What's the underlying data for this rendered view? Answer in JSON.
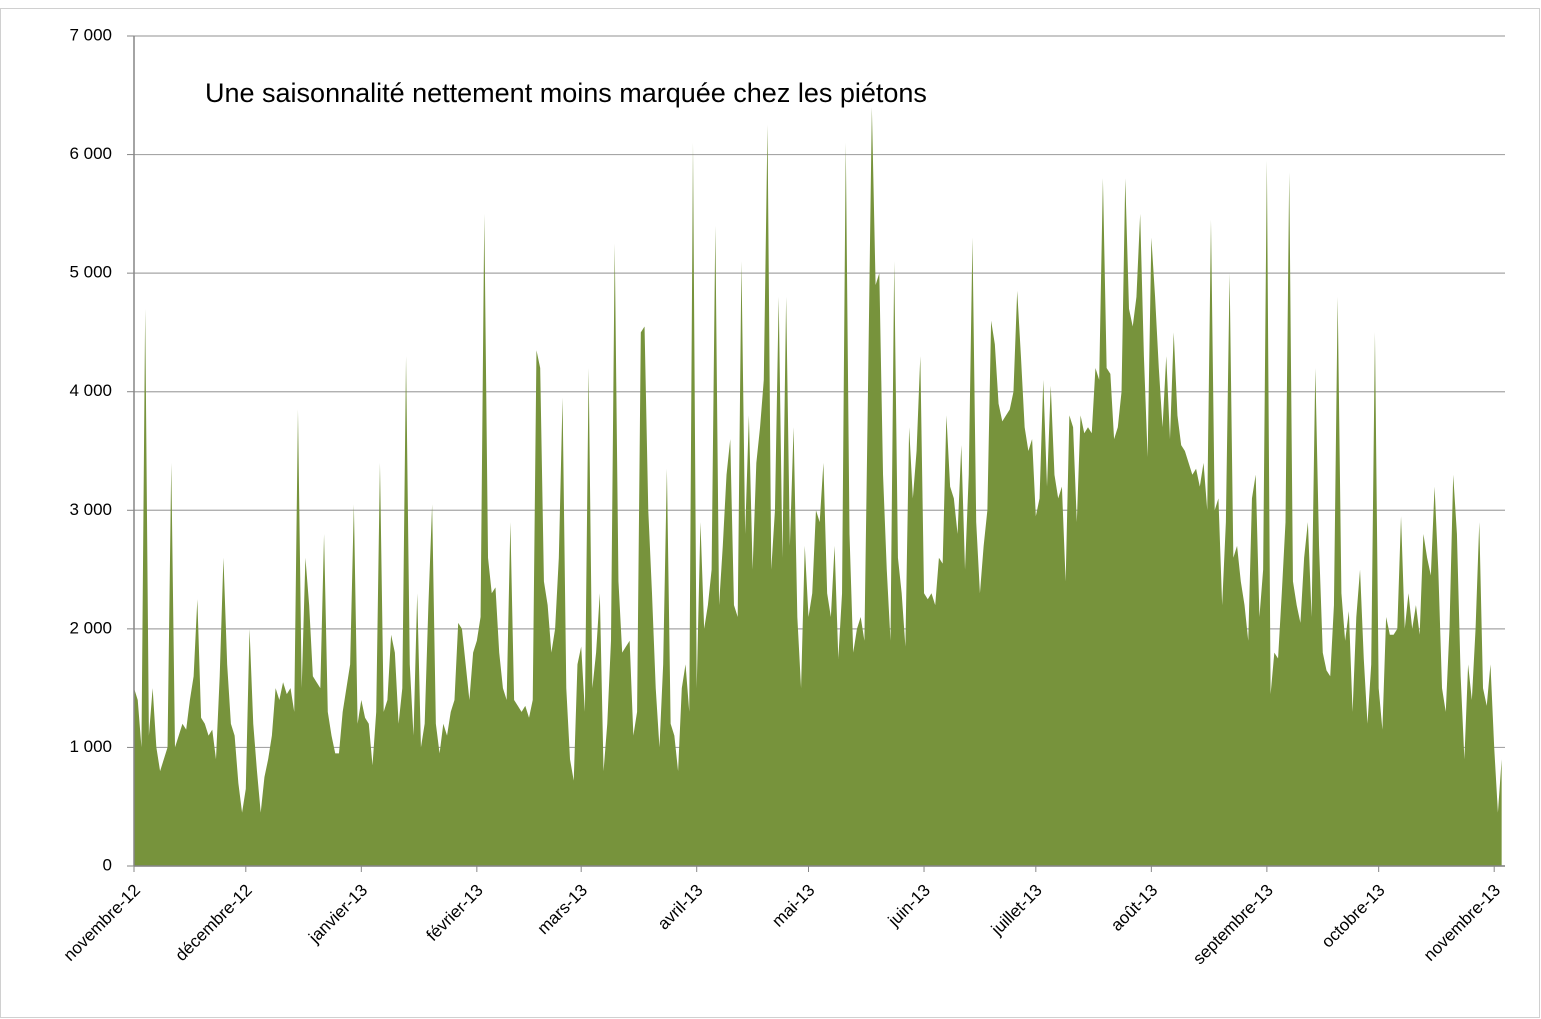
{
  "chart_data": {
    "type": "area",
    "title": "Une saisonnalité nettement moins marquée chez les piétons",
    "color": "#77933c",
    "grid": true,
    "ylim": [
      0,
      7000
    ],
    "yticks": [
      0,
      {
        "value": 1000,
        "label": "1 000"
      },
      {
        "value": 2000,
        "label": "2 000"
      },
      {
        "value": 3000,
        "label": "3 000"
      },
      {
        "value": 4000,
        "label": "4 000"
      },
      {
        "value": 5000,
        "label": "5 000"
      },
      {
        "value": 6000,
        "label": "6 000"
      },
      {
        "value": 7000,
        "label": "7 000"
      }
    ],
    "categories": [
      "novembre-12",
      null,
      null,
      null,
      null,
      null,
      null,
      null,
      null,
      null,
      null,
      null,
      null,
      null,
      null,
      null,
      null,
      null,
      null,
      null,
      null,
      null,
      null,
      null,
      null,
      null,
      null,
      null,
      null,
      null,
      "décembre-12",
      null,
      null,
      null,
      null,
      null,
      null,
      null,
      null,
      null,
      null,
      null,
      null,
      null,
      null,
      null,
      null,
      null,
      null,
      null,
      null,
      null,
      null,
      null,
      null,
      null,
      null,
      null,
      null,
      null,
      null,
      "janvier-13",
      null,
      null,
      null,
      null,
      null,
      null,
      null,
      null,
      null,
      null,
      null,
      null,
      null,
      null,
      null,
      null,
      null,
      null,
      null,
      null,
      null,
      null,
      null,
      null,
      null,
      null,
      null,
      null,
      null,
      null,
      "février-13",
      null,
      null,
      null,
      null,
      null,
      null,
      null,
      null,
      null,
      null,
      null,
      null,
      null,
      null,
      null,
      null,
      null,
      null,
      null,
      null,
      null,
      null,
      null,
      null,
      null,
      null,
      null,
      "mars-13",
      null,
      null,
      null,
      null,
      null,
      null,
      null,
      null,
      null,
      null,
      null,
      null,
      null,
      null,
      null,
      null,
      null,
      null,
      null,
      null,
      null,
      null,
      null,
      null,
      null,
      null,
      null,
      null,
      null,
      null,
      "avril-13",
      null,
      null,
      null,
      null,
      null,
      null,
      null,
      null,
      null,
      null,
      null,
      null,
      null,
      null,
      null,
      null,
      null,
      null,
      null,
      null,
      null,
      null,
      null,
      null,
      null,
      null,
      null,
      null,
      null,
      "mai-13",
      null,
      null,
      null,
      null,
      null,
      null,
      null,
      null,
      null,
      null,
      null,
      null,
      null,
      null,
      null,
      null,
      null,
      null,
      null,
      null,
      null,
      null,
      null,
      null,
      null,
      null,
      null,
      null,
      null,
      null,
      "juin-13",
      null,
      null,
      null,
      null,
      null,
      null,
      null,
      null,
      null,
      null,
      null,
      null,
      null,
      null,
      null,
      null,
      null,
      null,
      null,
      null,
      null,
      null,
      null,
      null,
      null,
      null,
      null,
      null,
      null,
      "juillet-13",
      null,
      null,
      null,
      null,
      null,
      null,
      null,
      null,
      null,
      null,
      null,
      null,
      null,
      null,
      null,
      null,
      null,
      null,
      null,
      null,
      null,
      null,
      null,
      null,
      null,
      null,
      null,
      null,
      null,
      null,
      "août-13",
      null,
      null,
      null,
      null,
      null,
      null,
      null,
      null,
      null,
      null,
      null,
      null,
      null,
      null,
      null,
      null,
      null,
      null,
      null,
      null,
      null,
      null,
      null,
      null,
      null,
      null,
      null,
      null,
      null,
      null,
      "septembre-13",
      null,
      null,
      null,
      null,
      null,
      null,
      null,
      null,
      null,
      null,
      null,
      null,
      null,
      null,
      null,
      null,
      null,
      null,
      null,
      null,
      null,
      null,
      null,
      null,
      null,
      null,
      null,
      null,
      null,
      "octobre-13",
      null,
      null,
      null,
      null,
      null,
      null,
      null,
      null,
      null,
      null,
      null,
      null,
      null,
      null,
      null,
      null,
      null,
      null,
      null,
      null,
      null,
      null,
      null,
      null,
      null,
      null,
      null,
      null,
      null,
      null,
      "novembre-13",
      null,
      null
    ],
    "values": [
      1500,
      1400,
      1000,
      4700,
      1100,
      1500,
      1000,
      800,
      900,
      1000,
      3400,
      1000,
      1100,
      1200,
      1150,
      1400,
      1600,
      2250,
      1250,
      1200,
      1100,
      1150,
      900,
      1600,
      2600,
      1700,
      1200,
      1100,
      700,
      450,
      650,
      2000,
      1200,
      800,
      450,
      750,
      900,
      1100,
      1500,
      1400,
      1550,
      1450,
      1500,
      1300,
      3850,
      1500,
      2600,
      2200,
      1600,
      1550,
      1500,
      2800,
      1300,
      1100,
      950,
      950,
      1300,
      1500,
      1700,
      3050,
      1200,
      1400,
      1250,
      1200,
      850,
      1300,
      3400,
      1300,
      1400,
      1950,
      1800,
      1200,
      1500,
      4300,
      1700,
      1100,
      2300,
      1000,
      1200,
      2200,
      3050,
      1200,
      950,
      1200,
      1100,
      1300,
      1400,
      2050,
      2000,
      1700,
      1400,
      1800,
      1900,
      2100,
      5500,
      2600,
      2300,
      2350,
      1800,
      1500,
      1400,
      2900,
      1400,
      1350,
      1300,
      1350,
      1250,
      1400,
      4350,
      4200,
      2400,
      2200,
      1800,
      2000,
      2600,
      3950,
      1500,
      900,
      720,
      1700,
      1850,
      1300,
      4200,
      1500,
      1800,
      2300,
      800,
      1200,
      1900,
      5250,
      2400,
      1800,
      1850,
      1900,
      1100,
      1300,
      4500,
      4550,
      3000,
      2300,
      1500,
      1000,
      1700,
      3350,
      1200,
      1100,
      800,
      1500,
      1700,
      1300,
      6100,
      1500,
      2900,
      2000,
      2200,
      2500,
      5400,
      2200,
      2700,
      3300,
      3600,
      2200,
      2100,
      5100,
      2800,
      3800,
      2500,
      3400,
      3700,
      4100,
      6250,
      2500,
      3000,
      4800,
      2600,
      4800,
      2700,
      3700,
      2100,
      1500,
      2700,
      2100,
      2300,
      3000,
      2900,
      3400,
      2300,
      2100,
      2700,
      1750,
      2300,
      6100,
      2800,
      1800,
      2000,
      2100,
      1900,
      4100,
      6400,
      4900,
      5000,
      3300,
      2500,
      1900,
      5100,
      2600,
      2300,
      1850,
      3700,
      3100,
      3500,
      4300,
      2300,
      2250,
      2300,
      2200,
      2600,
      2550,
      3800,
      3200,
      3100,
      2800,
      3550,
      2500,
      3300,
      5300,
      2900,
      2300,
      2700,
      3000,
      4600,
      4400,
      3900,
      3750,
      3800,
      3850,
      4000,
      4850,
      4300,
      3700,
      3500,
      3600,
      2950,
      3100,
      4100,
      3200,
      4050,
      3300,
      3100,
      3200,
      2400,
      3800,
      3700,
      2900,
      3800,
      3650,
      3700,
      3650,
      4200,
      4100,
      5800,
      4200,
      4150,
      3600,
      3700,
      4000,
      5800,
      4700,
      4550,
      4800,
      5500,
      4300,
      3450,
      5300,
      4800,
      4200,
      3700,
      4300,
      3600,
      4500,
      3800,
      3550,
      3500,
      3400,
      3300,
      3350,
      3200,
      3400,
      3000,
      5450,
      3000,
      3100,
      2200,
      2900,
      5000,
      2600,
      2700,
      2400,
      2200,
      1900,
      3100,
      3300,
      2100,
      2500,
      5950,
      1450,
      1800,
      1750,
      2300,
      2900,
      5850,
      2400,
      2200,
      2050,
      2600,
      2900,
      2100,
      4200,
      2700,
      1800,
      1650,
      1600,
      2200,
      4800,
      2300,
      1900,
      2150,
      1300,
      2100,
      2500,
      1750,
      1200,
      1700,
      4500,
      1500,
      1150,
      2100,
      1950,
      1950,
      2000,
      2950,
      2000,
      2300,
      2000,
      2200,
      1950,
      2800,
      2600,
      2450,
      3200,
      2500,
      1500,
      1300,
      2000,
      3300,
      2800,
      1600,
      900,
      1700,
      1400,
      2000,
      2900,
      1500,
      1350,
      1700,
      1000,
      450,
      900
    ]
  }
}
